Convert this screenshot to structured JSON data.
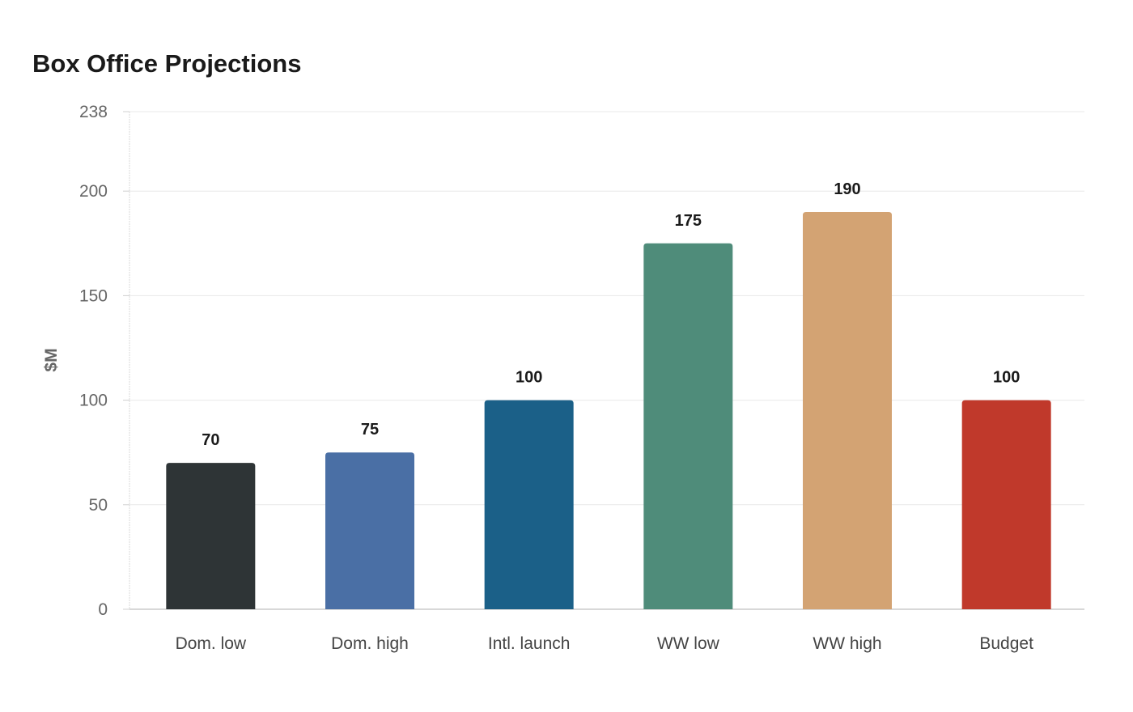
{
  "chart_data": {
    "type": "bar",
    "title": "Box Office Projections",
    "xlabel": "",
    "ylabel": "$M",
    "categories": [
      "Dom. low",
      "Dom. high",
      "Intl. launch",
      "WW low",
      "WW high",
      "Budget"
    ],
    "values": [
      70,
      75,
      100,
      175,
      190,
      100
    ],
    "colors": [
      "#2e3436",
      "#4a6fa5",
      "#1b6088",
      "#4f8c7a",
      "#d3a373",
      "#c0392b"
    ],
    "ylim": [
      0,
      238
    ],
    "yticks": [
      "0",
      "50",
      "100",
      "150",
      "200",
      "238"
    ],
    "grid": true,
    "legend": "none"
  }
}
